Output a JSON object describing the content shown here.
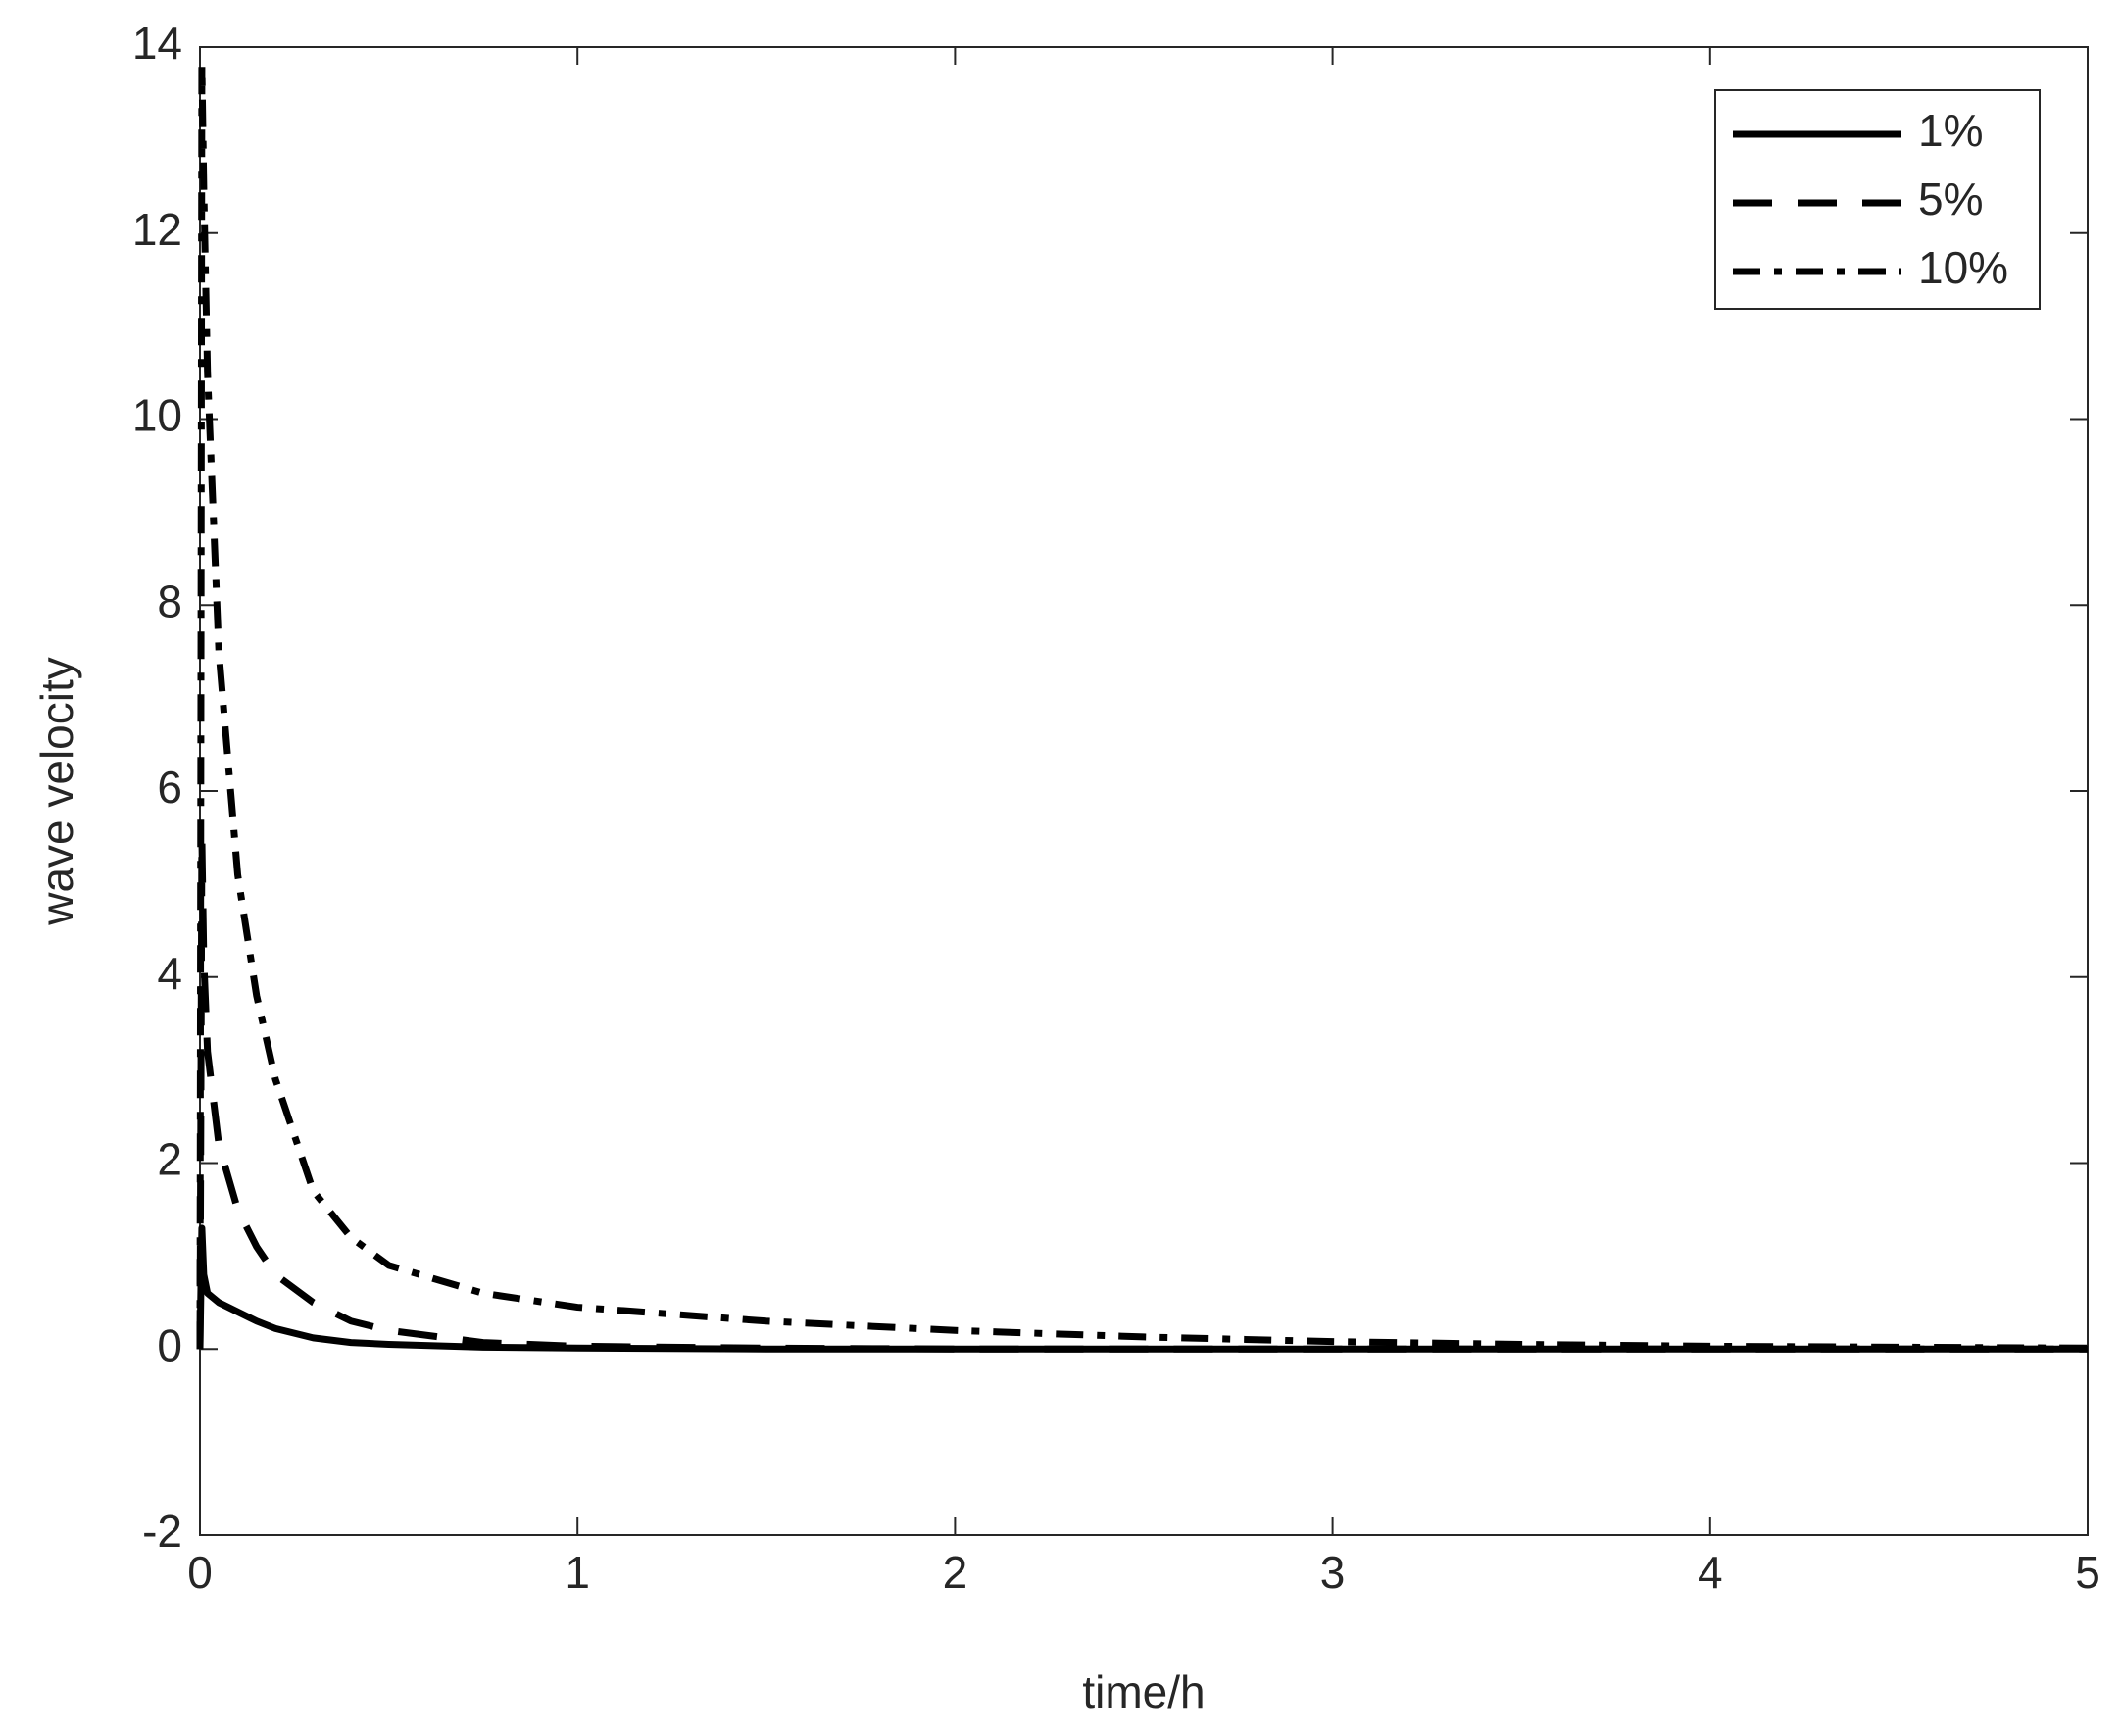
{
  "chart_data": {
    "type": "line",
    "xlabel": "time/h",
    "ylabel": "wave velocity",
    "x": [
      0,
      0.005,
      0.01,
      0.02,
      0.05,
      0.1,
      0.15,
      0.2,
      0.3,
      0.4,
      0.5,
      0.75,
      1,
      1.5,
      2,
      2.5,
      3,
      3.5,
      4,
      5
    ],
    "series": [
      {
        "name": "1%",
        "color": "#000000",
        "style": "solid",
        "values": [
          0,
          1.3,
          0.8,
          0.6,
          0.5,
          0.4,
          0.3,
          0.22,
          0.12,
          0.07,
          0.05,
          0.02,
          0.01,
          0,
          0,
          0,
          0,
          0,
          0,
          0
        ]
      },
      {
        "name": "5%",
        "color": "#000000",
        "style": "dashed",
        "values": [
          0,
          5.5,
          4.2,
          3.2,
          2.2,
          1.5,
          1.1,
          0.8,
          0.5,
          0.3,
          0.2,
          0.07,
          0.03,
          0.01,
          0,
          0,
          0,
          0,
          0,
          0
        ]
      },
      {
        "name": "10%",
        "color": "#000000",
        "style": "dashdot",
        "values": [
          0,
          13.8,
          12.5,
          10.5,
          7.5,
          5.1,
          3.8,
          2.9,
          1.7,
          1.2,
          0.9,
          0.6,
          0.45,
          0.3,
          0.2,
          0.13,
          0.08,
          0.05,
          0.03,
          0.01
        ]
      }
    ],
    "xlim": [
      0,
      5
    ],
    "xticks": [
      0,
      1,
      2,
      3,
      4,
      5
    ],
    "ylim": [
      -2,
      14
    ],
    "yticks": [
      -2,
      0,
      2,
      4,
      6,
      8,
      10,
      12,
      14
    ],
    "grid": false,
    "legend": "northeast"
  }
}
